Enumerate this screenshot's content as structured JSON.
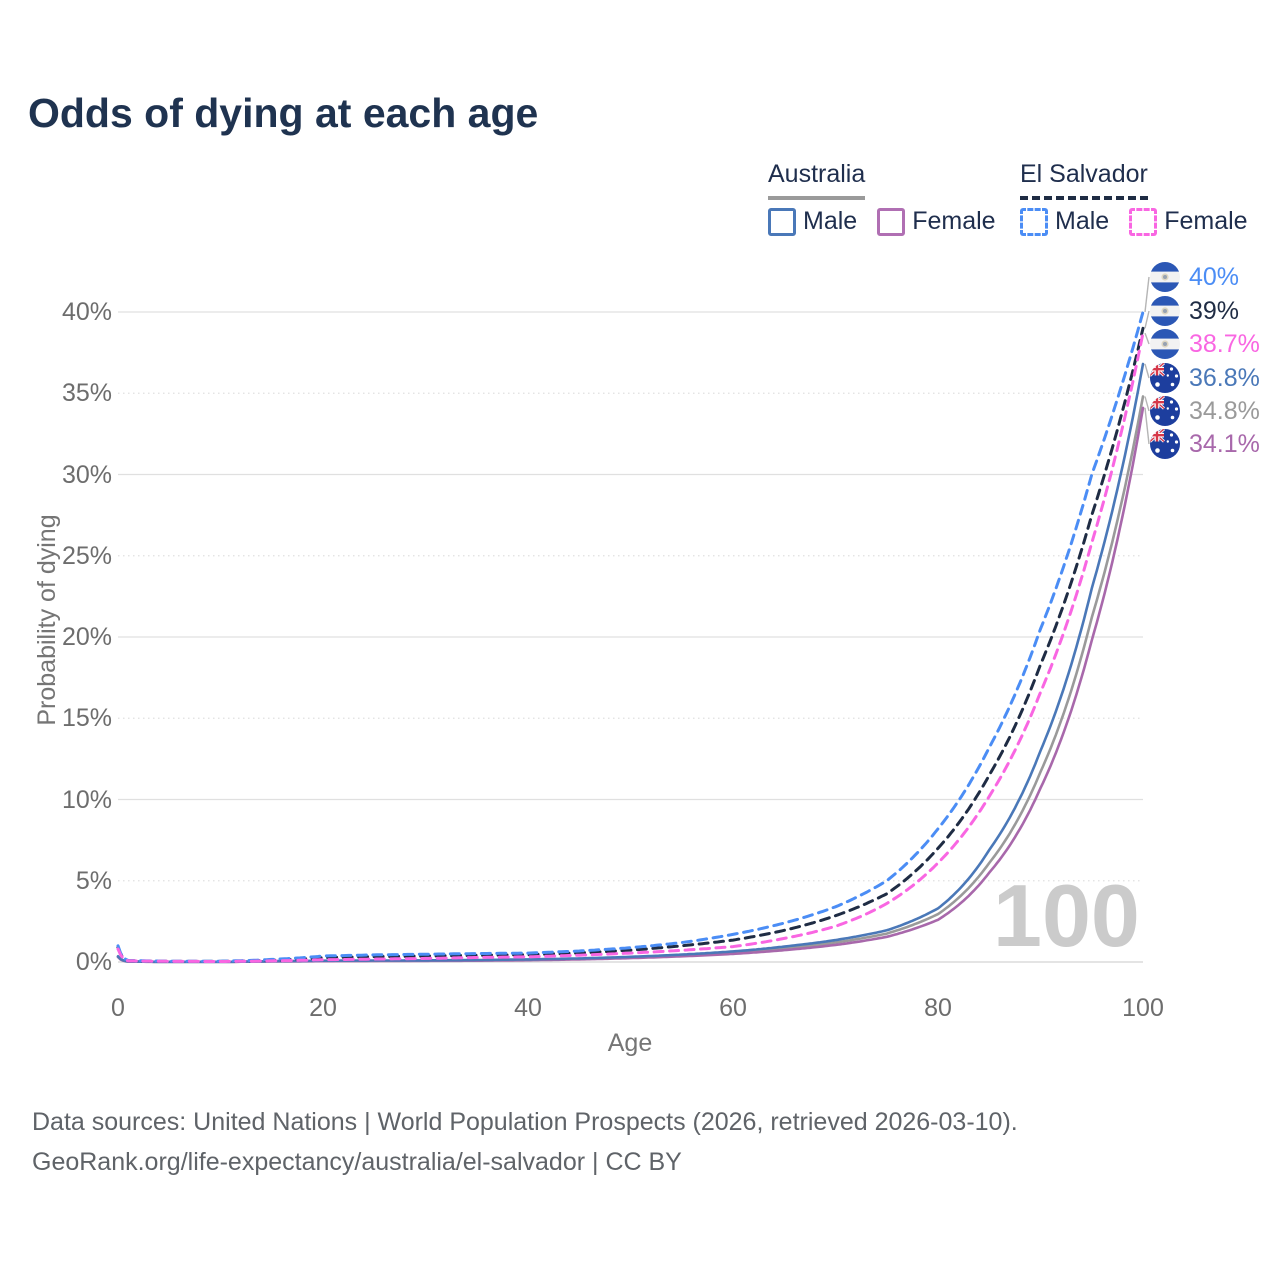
{
  "title": "Odds of dying at each age",
  "legend": {
    "groups": [
      {
        "country": "Australia",
        "underline_style": "solid",
        "underline_color": "#9a9a9a",
        "items": [
          {
            "label": "Male",
            "color": "#4a78b8",
            "dashed": false
          },
          {
            "label": "Female",
            "color": "#b06fb3",
            "dashed": false
          }
        ]
      },
      {
        "country": "El Salvador",
        "underline_style": "dashed",
        "underline_color": "#1f2c44",
        "items": [
          {
            "label": "Male",
            "color": "#4b8df5",
            "dashed": true
          },
          {
            "label": "Female",
            "color": "#f966e2",
            "dashed": true
          }
        ]
      }
    ]
  },
  "chart_data": {
    "type": "line",
    "title": "Odds of dying at each age",
    "xlabel": "Age",
    "ylabel": "Probability of dying",
    "xlim": [
      0,
      100
    ],
    "ylim": [
      0,
      42
    ],
    "x_tick_labels": [
      "0",
      "20",
      "40",
      "60",
      "80",
      "100"
    ],
    "x_tick_values": [
      0,
      20,
      40,
      60,
      80,
      100
    ],
    "y_tick_labels": [
      "0%",
      "5%",
      "10%",
      "15%",
      "20%",
      "25%",
      "30%",
      "35%",
      "40%"
    ],
    "y_tick_values": [
      0,
      5,
      10,
      15,
      20,
      25,
      30,
      35,
      40
    ],
    "grid": "horizontal only, solid at 10% steps, dotted at 5% steps",
    "age_indicator": "100",
    "ages": [
      0,
      1,
      5,
      10,
      15,
      20,
      25,
      30,
      35,
      40,
      45,
      50,
      55,
      60,
      65,
      70,
      75,
      80,
      85,
      90,
      95,
      100
    ],
    "series": [
      {
        "name": "El Salvador Male",
        "country": "El Salvador",
        "sex": "Male",
        "flag": "el-salvador",
        "style": "dashed",
        "color": "#4b8df5",
        "end_label": "40%",
        "values_pct": [
          1.0,
          0.09,
          0.05,
          0.05,
          0.16,
          0.37,
          0.44,
          0.48,
          0.52,
          0.55,
          0.68,
          0.88,
          1.2,
          1.7,
          2.4,
          3.4,
          5.0,
          8.2,
          13.2,
          20.5,
          30.0,
          40.0
        ]
      },
      {
        "name": "El Salvador Both sexes",
        "country": "El Salvador",
        "sex": "Both",
        "flag": "el-salvador",
        "style": "dashed",
        "color": "#1f2c44",
        "end_label": "39%",
        "values_pct": [
          0.9,
          0.08,
          0.04,
          0.04,
          0.11,
          0.27,
          0.33,
          0.37,
          0.41,
          0.45,
          0.56,
          0.73,
          1.0,
          1.35,
          1.95,
          2.85,
          4.2,
          7.0,
          11.5,
          18.3,
          27.5,
          39.0
        ]
      },
      {
        "name": "El Salvador Female",
        "country": "El Salvador",
        "sex": "Female",
        "flag": "el-salvador",
        "style": "dashed",
        "color": "#f966e2",
        "end_label": "38.7%",
        "values_pct": [
          0.8,
          0.07,
          0.04,
          0.03,
          0.07,
          0.14,
          0.18,
          0.22,
          0.28,
          0.32,
          0.42,
          0.55,
          0.72,
          0.95,
          1.45,
          2.2,
          3.6,
          6.1,
          10.2,
          16.6,
          25.8,
          38.7
        ]
      },
      {
        "name": "Australia Male",
        "country": "Australia",
        "sex": "Male",
        "flag": "australia",
        "style": "solid",
        "color": "#4a78b8",
        "end_label": "36.8%",
        "values_pct": [
          0.35,
          0.03,
          0.01,
          0.01,
          0.05,
          0.08,
          0.09,
          0.1,
          0.12,
          0.16,
          0.22,
          0.32,
          0.46,
          0.65,
          0.95,
          1.35,
          1.95,
          3.3,
          6.9,
          13.0,
          23.0,
          36.8
        ]
      },
      {
        "name": "Australia Both sexes",
        "country": "Australia",
        "sex": "Both",
        "flag": "australia",
        "style": "solid",
        "color": "#9a9a9a",
        "end_label": "34.8%",
        "values_pct": [
          0.33,
          0.03,
          0.01,
          0.01,
          0.04,
          0.06,
          0.07,
          0.08,
          0.1,
          0.14,
          0.19,
          0.28,
          0.4,
          0.57,
          0.84,
          1.2,
          1.75,
          2.95,
          6.1,
          11.7,
          21.2,
          34.8
        ]
      },
      {
        "name": "Australia Female",
        "country": "Australia",
        "sex": "Female",
        "flag": "australia",
        "style": "solid",
        "color": "#a868ab",
        "end_label": "34.1%",
        "values_pct": [
          0.3,
          0.02,
          0.01,
          0.01,
          0.03,
          0.05,
          0.06,
          0.07,
          0.08,
          0.11,
          0.16,
          0.24,
          0.35,
          0.5,
          0.73,
          1.05,
          1.55,
          2.6,
          5.5,
          10.7,
          19.8,
          34.1
        ]
      }
    ]
  },
  "footer": {
    "line1": "Data sources: United Nations | World Population Prospects (2026, retrieved 2026-03-10).",
    "line2": "GeoRank.org/life-expectancy/australia/el-salvador | CC BY"
  },
  "colors": {
    "title_text": "#1f3350",
    "legend_text": "#1f2e4d",
    "tick_text": "#6d6d6d",
    "axis_title_text": "#757575",
    "footer_text": "#5f6368",
    "grid_major": "#e0e0e0",
    "grid_zero": "#d4d4d4",
    "watermark": "#cbcbcb",
    "connector": "#b5b5b5"
  }
}
